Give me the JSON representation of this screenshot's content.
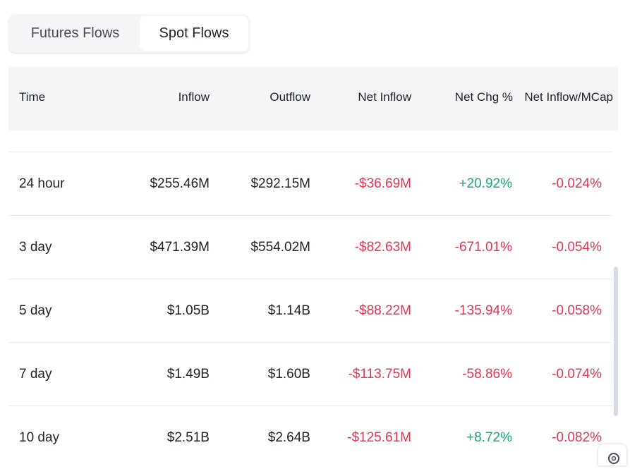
{
  "tabs": [
    "Futures Flows",
    "Spot Flows"
  ],
  "active_tab": 1,
  "table": {
    "header": [
      "Time",
      "Inflow",
      "Outflow",
      "Net Inflow",
      "Net Chg %",
      "Net Inflow/MCap"
    ],
    "rows": [
      [
        "24 hour",
        "$255.46M",
        "$292.15M",
        "-$36.69M",
        "+20.92%",
        "-0.024%"
      ],
      [
        "3 day",
        "$471.39M",
        "$554.02M",
        "-$82.63M",
        "-671.01%",
        "-0.054%"
      ],
      [
        "5 day",
        "$1.05B",
        "$1.14B",
        "-$88.22M",
        "-135.94%",
        "-0.058%"
      ],
      [
        "7 day",
        "$1.49B",
        "$1.60B",
        "-$113.75M",
        "-58.86%",
        "-0.074%"
      ],
      [
        "10 day",
        "$2.51B",
        "$2.64B",
        "-$125.61M",
        "+8.72%",
        "-0.082%"
      ]
    ]
  }
}
